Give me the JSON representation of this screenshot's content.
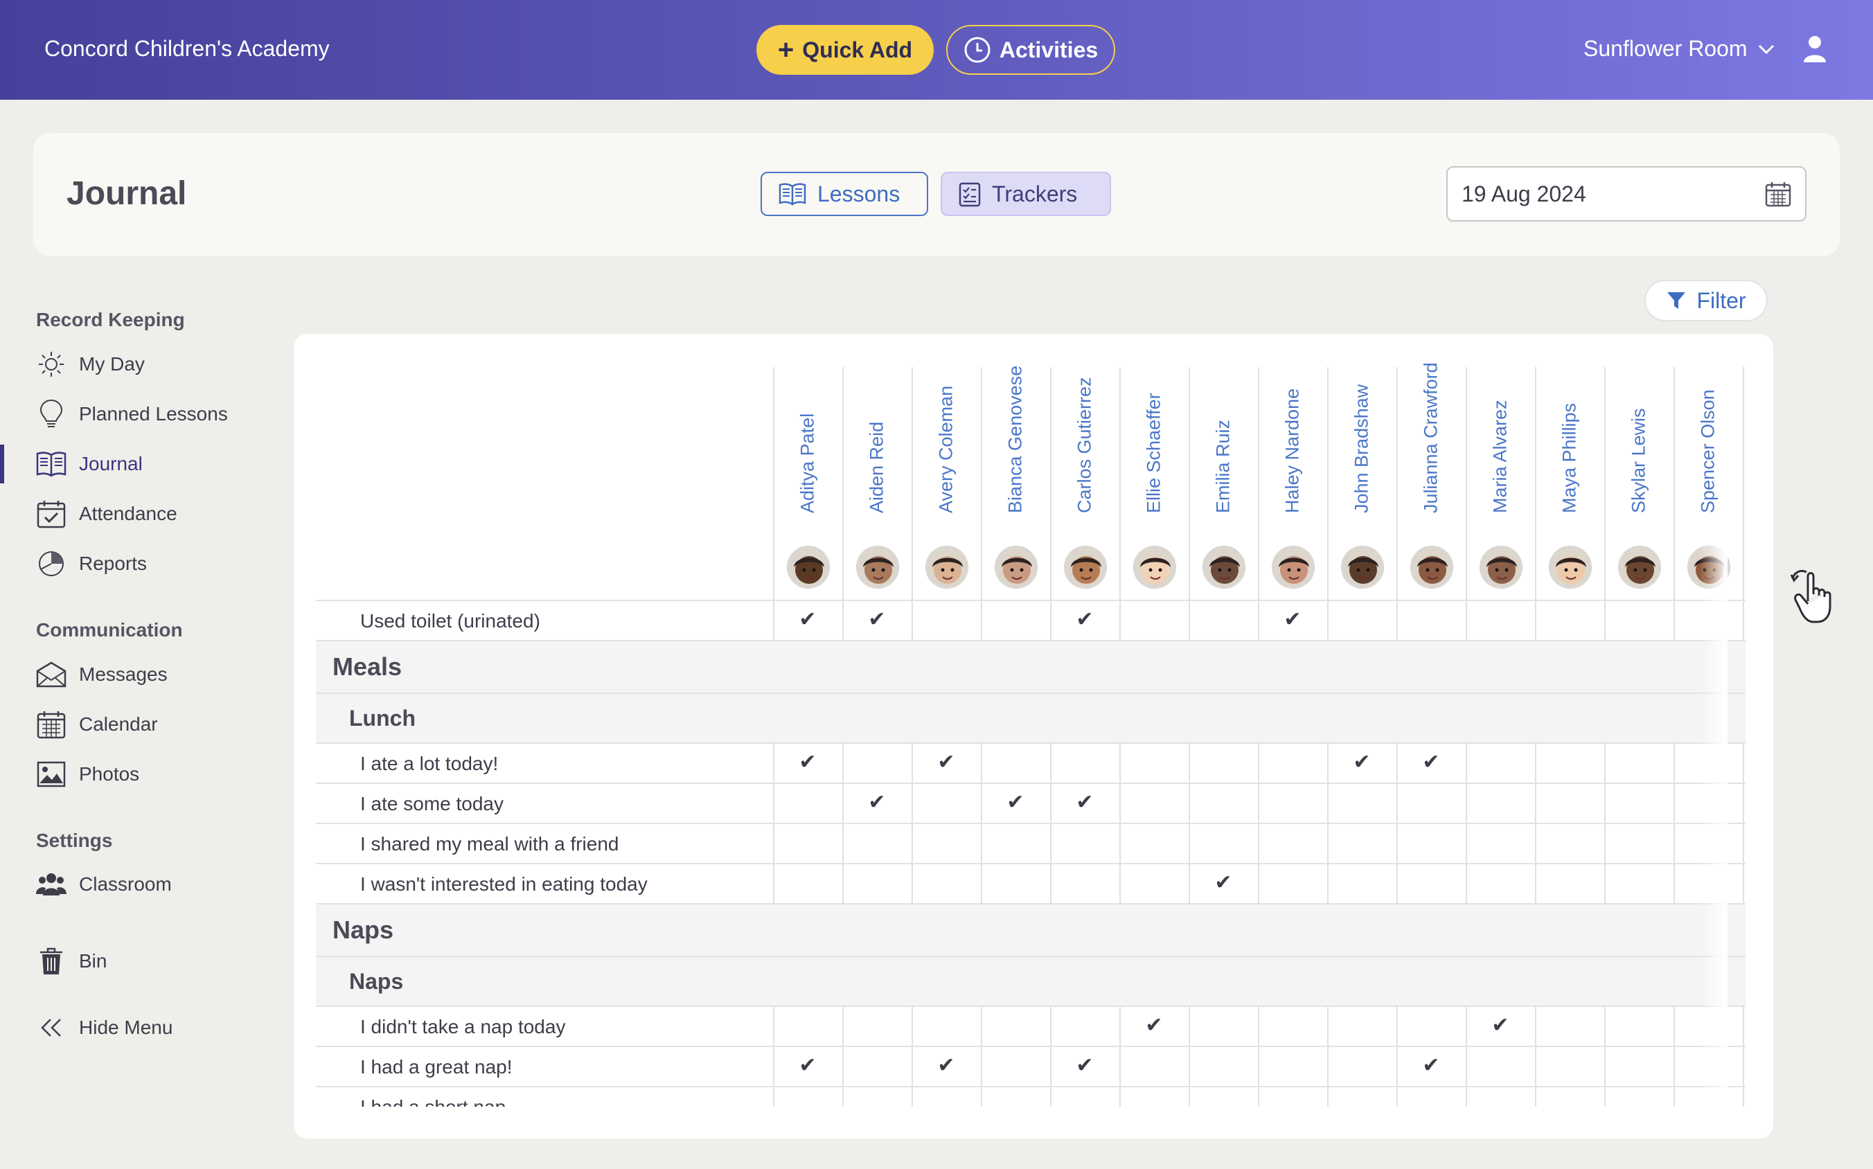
{
  "header": {
    "brand": "Concord Children's Academy",
    "quick_add": "Quick Add",
    "activities": "Activities",
    "room": "Sunflower Room"
  },
  "journal": {
    "title": "Journal",
    "tabs": {
      "lessons": "Lessons",
      "trackers": "Trackers"
    },
    "date": "19 Aug 2024",
    "filter": "Filter"
  },
  "sidebar": {
    "record_keeping": "Record Keeping",
    "my_day": "My Day",
    "planned_lessons": "Planned Lessons",
    "journal": "Journal",
    "attendance": "Attendance",
    "reports": "Reports",
    "communication": "Communication",
    "messages": "Messages",
    "calendar": "Calendar",
    "photos": "Photos",
    "settings": "Settings",
    "classroom": "Classroom",
    "bin": "Bin",
    "hide_menu": "Hide Menu"
  },
  "children": [
    {
      "name": "Aditya Patel",
      "skin": "#5a3a24"
    },
    {
      "name": "Aiden Reid",
      "skin": "#a87a5e"
    },
    {
      "name": "Avery Coleman",
      "skin": "#d9b394"
    },
    {
      "name": "Bianca Genovese",
      "skin": "#c99b82"
    },
    {
      "name": "Carlos Gutierrez",
      "skin": "#b67c54"
    },
    {
      "name": "Ellie Schaeffer",
      "skin": "#f2d2b6"
    },
    {
      "name": "Emilia Ruiz",
      "skin": "#6a4a3a"
    },
    {
      "name": "Haley Nardone",
      "skin": "#c8917a"
    },
    {
      "name": "John Bradshaw",
      "skin": "#5a3c2c"
    },
    {
      "name": "Julianna Crawford",
      "skin": "#8a5a42"
    },
    {
      "name": "Maria Alvarez",
      "skin": "#8b5f48"
    },
    {
      "name": "Maya Phillips",
      "skin": "#eec9aa"
    },
    {
      "name": "Skylar Lewis",
      "skin": "#6b4630"
    },
    {
      "name": "Spencer Olson",
      "skin": "#8e5a3a"
    }
  ],
  "rows": [
    {
      "type": "item",
      "label": "Used toilet (urinated)",
      "checks": [
        1,
        1,
        0,
        0,
        1,
        0,
        0,
        1,
        0,
        0,
        0,
        0,
        0,
        0
      ]
    },
    {
      "type": "section",
      "label": "Meals"
    },
    {
      "type": "sub",
      "label": "Lunch"
    },
    {
      "type": "item",
      "label": "I ate a lot today!",
      "checks": [
        1,
        0,
        1,
        0,
        0,
        0,
        0,
        0,
        1,
        1,
        0,
        0,
        0,
        0
      ]
    },
    {
      "type": "item",
      "label": "I ate some today",
      "checks": [
        0,
        1,
        0,
        1,
        1,
        0,
        0,
        0,
        0,
        0,
        0,
        0,
        0,
        0
      ]
    },
    {
      "type": "item",
      "label": "I shared my meal with a friend",
      "checks": [
        0,
        0,
        0,
        0,
        0,
        0,
        0,
        0,
        0,
        0,
        0,
        0,
        0,
        0
      ]
    },
    {
      "type": "item",
      "label": "I wasn't interested in eating today",
      "checks": [
        0,
        0,
        0,
        0,
        0,
        0,
        1,
        0,
        0,
        0,
        0,
        0,
        0,
        0
      ]
    },
    {
      "type": "section",
      "label": "Naps"
    },
    {
      "type": "sub",
      "label": "Naps"
    },
    {
      "type": "item",
      "label": "I didn't take a nap today",
      "checks": [
        0,
        0,
        0,
        0,
        0,
        1,
        0,
        0,
        0,
        0,
        1,
        0,
        0,
        0
      ]
    },
    {
      "type": "item",
      "label": "I had a great nap!",
      "checks": [
        1,
        0,
        1,
        0,
        1,
        0,
        0,
        0,
        0,
        1,
        0,
        0,
        0,
        0
      ]
    },
    {
      "type": "item",
      "label": "I had a short nap",
      "checks": [
        0,
        0,
        0,
        0,
        0,
        0,
        0,
        0,
        0,
        0,
        0,
        0,
        0,
        0
      ]
    }
  ],
  "check_glyph": "✔",
  "colors": {
    "accent": "#3e6cc3",
    "brand_yellow": "#f6cf4b",
    "nav_active": "#3a3580"
  }
}
